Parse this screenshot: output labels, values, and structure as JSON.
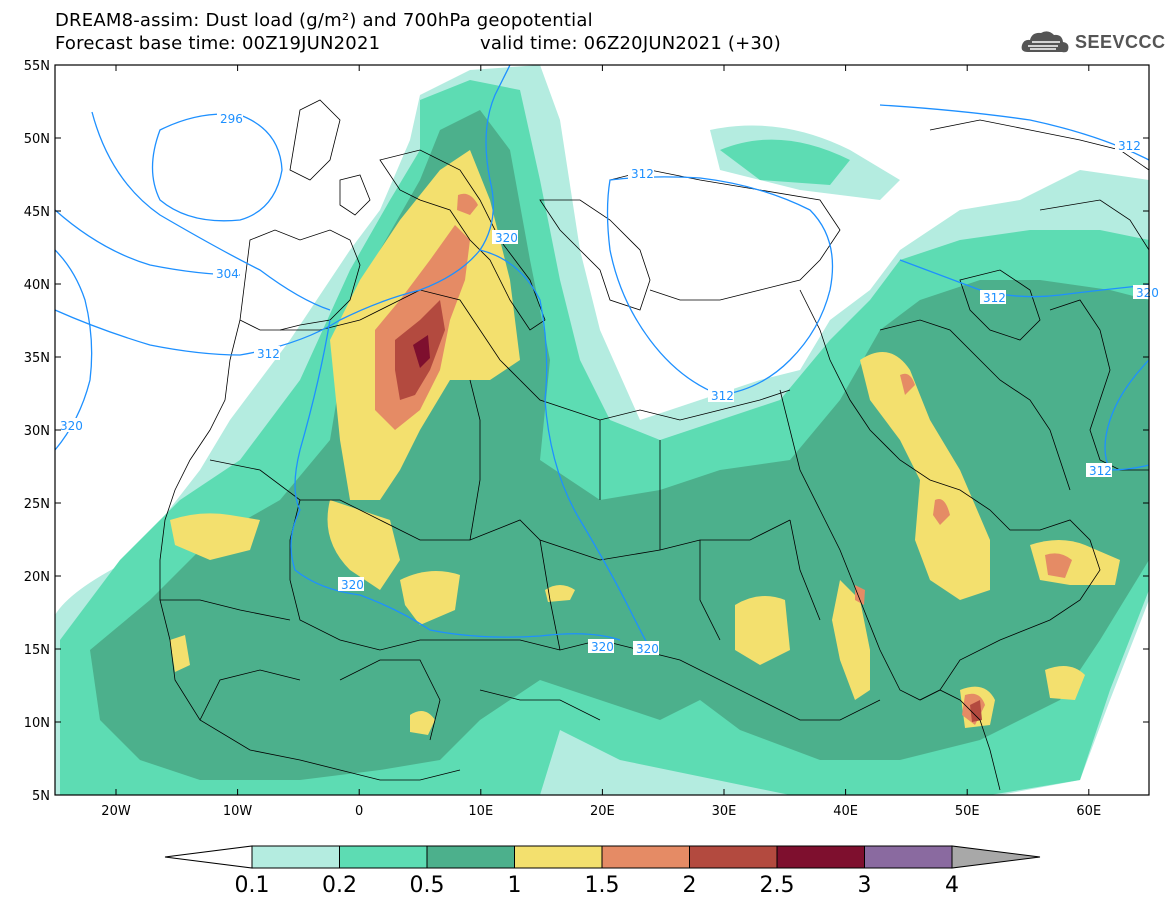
{
  "title": {
    "line1": "DREAM8-assim: Dust load (g/m²) and 700hPa geopotential",
    "line2_left": "Forecast base time: 00Z19JUN2021",
    "line2_right": "valid time: 06Z20JUN2021 (+30)"
  },
  "logo": {
    "text": "SEEVCCC",
    "icon": "cloud-icon"
  },
  "axes": {
    "lat_labels": [
      "55N",
      "50N",
      "45N",
      "40N",
      "35N",
      "30N",
      "25N",
      "20N",
      "15N",
      "10N",
      "5N"
    ],
    "lon_labels": [
      "20W",
      "10W",
      "0",
      "10E",
      "20E",
      "30E",
      "40E",
      "50E",
      "60E"
    ]
  },
  "contours": {
    "labels": [
      "296",
      "304",
      "312",
      "320",
      "320",
      "312",
      "312",
      "320",
      "312",
      "320",
      "320",
      "312",
      "320",
      "312"
    ],
    "color": "#1e90ff"
  },
  "colorbar": {
    "levels": [
      "0.1",
      "0.2",
      "0.5",
      "1",
      "1.5",
      "2",
      "2.5",
      "3",
      "4"
    ],
    "colors": [
      "#b4ece0",
      "#5ddcb3",
      "#4cb08c",
      "#f3e06e",
      "#e58b65",
      "#b34a3f",
      "#7e0f2e",
      "#8a6aa0",
      "#a8a8a8"
    ]
  }
}
